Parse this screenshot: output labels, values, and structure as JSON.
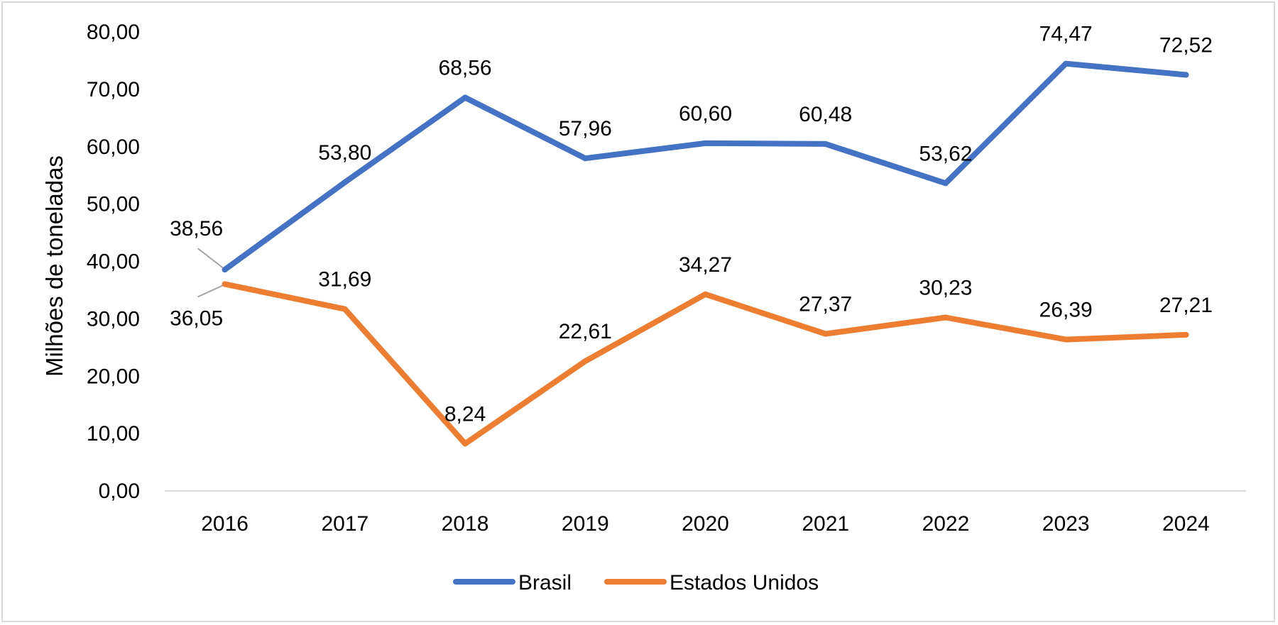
{
  "chart_data": {
    "type": "line",
    "title": "",
    "xlabel": "",
    "ylabel": "Milhões de toneladas",
    "ylim": [
      0,
      80
    ],
    "yticks": [
      "0,00",
      "10,00",
      "20,00",
      "30,00",
      "40,00",
      "50,00",
      "60,00",
      "70,00",
      "80,00"
    ],
    "grid": false,
    "legend_position": "bottom",
    "categories": [
      "2016",
      "2017",
      "2018",
      "2019",
      "2020",
      "2021",
      "2022",
      "2023",
      "2024"
    ],
    "series": [
      {
        "name": "Brasil",
        "color": "#4472c4",
        "values": [
          38.56,
          53.8,
          68.56,
          57.96,
          60.6,
          60.48,
          53.62,
          74.47,
          72.52
        ],
        "labels": [
          "38,56",
          "53,80",
          "68,56",
          "57,96",
          "60,60",
          "60,48",
          "53,62",
          "74,47",
          "72,52"
        ]
      },
      {
        "name": "Estados Unidos",
        "color": "#ed7d31",
        "values": [
          36.05,
          31.69,
          8.24,
          22.61,
          34.27,
          27.37,
          30.23,
          26.39,
          27.21
        ],
        "labels": [
          "36,05",
          "31,69",
          "8,24",
          "22,61",
          "34,27",
          "27,37",
          "30,23",
          "26,39",
          "27,21"
        ]
      }
    ]
  }
}
